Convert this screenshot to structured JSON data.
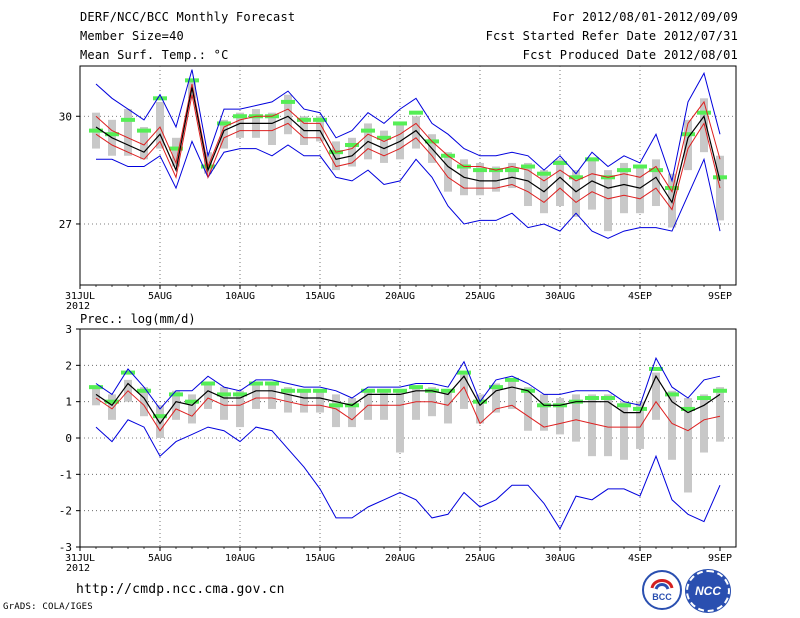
{
  "header": {
    "title": "DERF/NCC/BCC Monthly Forecast",
    "member_size": "Member Size=40",
    "variable": "Mean Surf. Temp.: °C",
    "forecast_period": "For 2012/08/01-2012/09/09",
    "started_refer_date": "Fcst Started Refer Date 2012/07/31",
    "produced_date": "Fcst Produced Date 2012/08/01"
  },
  "footer": {
    "url": "http://cmdp.ncc.cma.gov.cn",
    "credit": "GrADS: COLA/IGES",
    "logo_bcc_text": "BCC",
    "logo_ncc_text": "NCC"
  },
  "colors": {
    "envelope": "#0000dd",
    "mean_line": "#000000",
    "red_line": "#dd2020",
    "box": "#c8c8c8",
    "marker": "#55ee55"
  },
  "chart_data": [
    {
      "id": "temp",
      "type": "line",
      "title": "",
      "ylabel": "Mean Surf. Temp.: °C",
      "ylim": [
        25.3,
        31.4
      ],
      "yticks": [
        27,
        30
      ],
      "xlim": [
        0,
        40
      ],
      "xticks": [
        {
          "x": 0,
          "label": "31JUL",
          "sub": "2012"
        },
        {
          "x": 5,
          "label": "5AUG"
        },
        {
          "x": 10,
          "label": "10AUG"
        },
        {
          "x": 15,
          "label": "15AUG"
        },
        {
          "x": 20,
          "label": "20AUG"
        },
        {
          "x": 25,
          "label": "25AUG"
        },
        {
          "x": 30,
          "label": "30AUG"
        },
        {
          "x": 35,
          "label": "4SEP"
        },
        {
          "x": 40,
          "label": "9SEP"
        }
      ],
      "grid": true,
      "days": [
        1,
        2,
        3,
        4,
        5,
        6,
        7,
        8,
        9,
        10,
        11,
        12,
        13,
        14,
        15,
        16,
        17,
        18,
        19,
        20,
        21,
        22,
        23,
        24,
        25,
        26,
        27,
        28,
        29,
        30,
        31,
        32,
        33,
        34,
        35,
        36,
        37,
        38,
        39,
        40
      ],
      "series": [
        {
          "name": "max",
          "values": [
            30.9,
            30.5,
            30.2,
            29.9,
            30.6,
            29.7,
            31.3,
            28.9,
            30.2,
            30.2,
            30.3,
            30.4,
            30.7,
            30.2,
            30.1,
            29.4,
            29.6,
            30.1,
            29.8,
            30.2,
            30.5,
            29.8,
            29.5,
            29.1,
            28.9,
            28.9,
            29.0,
            28.9,
            28.5,
            28.9,
            28.4,
            29.0,
            28.6,
            28.9,
            28.7,
            29.5,
            28.2,
            30.4,
            31.2,
            29.5
          ]
        },
        {
          "name": "upper_red",
          "values": [
            30.0,
            29.6,
            29.4,
            29.2,
            29.7,
            28.7,
            30.9,
            28.6,
            29.7,
            29.9,
            30.0,
            30.0,
            30.2,
            29.8,
            29.8,
            29.0,
            29.1,
            29.5,
            29.3,
            29.5,
            29.8,
            29.3,
            28.9,
            28.6,
            28.6,
            28.5,
            28.6,
            28.5,
            28.2,
            28.5,
            28.2,
            28.4,
            28.3,
            28.4,
            28.3,
            28.6,
            27.9,
            29.8,
            30.4,
            28.8
          ]
        },
        {
          "name": "mean",
          "values": [
            29.7,
            29.4,
            29.2,
            29.0,
            29.5,
            28.5,
            30.8,
            28.5,
            29.6,
            29.8,
            29.8,
            29.8,
            30.0,
            29.6,
            29.6,
            28.8,
            28.9,
            29.3,
            29.1,
            29.3,
            29.6,
            29.1,
            28.6,
            28.3,
            28.2,
            28.2,
            28.3,
            28.2,
            27.9,
            28.3,
            27.9,
            28.2,
            28.0,
            28.1,
            28.0,
            28.3,
            27.6,
            29.4,
            30.0,
            28.2
          ]
        },
        {
          "name": "lower_red",
          "values": [
            29.5,
            29.2,
            29.0,
            28.8,
            29.3,
            28.3,
            30.6,
            28.3,
            29.4,
            29.6,
            29.6,
            29.6,
            29.8,
            29.4,
            29.4,
            28.6,
            28.7,
            29.1,
            28.9,
            29.1,
            29.4,
            28.9,
            28.3,
            28.0,
            28.0,
            28.0,
            28.1,
            27.9,
            27.6,
            28.0,
            27.6,
            27.9,
            27.7,
            27.8,
            27.7,
            28.0,
            27.4,
            29.1,
            29.8,
            28.0
          ]
        },
        {
          "name": "min",
          "values": [
            28.8,
            28.8,
            28.6,
            28.6,
            28.9,
            28.0,
            29.3,
            28.3,
            29.0,
            29.1,
            29.1,
            28.9,
            29.2,
            28.9,
            28.9,
            28.3,
            28.2,
            28.5,
            28.1,
            28.2,
            28.8,
            28.3,
            27.5,
            27.0,
            27.1,
            27.1,
            27.3,
            26.9,
            27.0,
            26.8,
            27.3,
            26.8,
            26.6,
            26.8,
            26.9,
            26.9,
            26.8,
            27.8,
            28.8,
            26.8
          ]
        },
        {
          "name": "marker",
          "values": [
            29.6,
            29.5,
            29.9,
            29.6,
            30.5,
            29.1,
            31.0,
            28.6,
            29.8,
            30.0,
            30.0,
            30.0,
            30.4,
            29.9,
            29.9,
            29.0,
            29.2,
            29.6,
            29.4,
            29.8,
            30.1,
            29.3,
            28.9,
            28.6,
            28.5,
            28.5,
            28.5,
            28.6,
            28.4,
            28.7,
            28.3,
            28.8,
            28.3,
            28.5,
            28.6,
            28.5,
            28.0,
            29.5,
            30.1,
            28.3
          ]
        },
        {
          "name": "box_high",
          "values": [
            30.1,
            29.9,
            30.2,
            29.7,
            30.4,
            29.4,
            31.0,
            29.0,
            29.9,
            30.1,
            30.2,
            30.1,
            30.6,
            30.0,
            30.0,
            29.3,
            29.4,
            29.8,
            29.6,
            29.8,
            30.0,
            29.5,
            29.0,
            28.8,
            28.7,
            28.6,
            28.7,
            28.7,
            28.5,
            28.8,
            28.5,
            28.8,
            28.5,
            28.7,
            28.6,
            28.8,
            28.4,
            29.9,
            30.5,
            28.9
          ]
        },
        {
          "name": "box_low",
          "values": [
            29.1,
            28.9,
            28.9,
            28.8,
            29.1,
            28.6,
            30.5,
            28.4,
            29.1,
            29.4,
            29.4,
            29.2,
            29.5,
            29.2,
            29.3,
            28.5,
            28.6,
            28.8,
            28.7,
            28.8,
            29.1,
            28.7,
            27.9,
            27.8,
            27.8,
            27.9,
            28.0,
            27.5,
            27.3,
            27.5,
            27.2,
            27.4,
            26.8,
            27.3,
            27.3,
            27.5,
            26.9,
            28.5,
            29.0,
            27.1
          ]
        }
      ]
    },
    {
      "id": "prec",
      "type": "line",
      "title": "Prec.: log(mm/d)",
      "ylabel": "Prec.: log(mm/d)",
      "ylim": [
        -3,
        3
      ],
      "yticks": [
        -3,
        -2,
        -1,
        0,
        1,
        2,
        3
      ],
      "xlim": [
        0,
        40
      ],
      "xticks": [
        {
          "x": 0,
          "label": "31JUL",
          "sub": "2012"
        },
        {
          "x": 5,
          "label": "5AUG"
        },
        {
          "x": 10,
          "label": "10AUG"
        },
        {
          "x": 15,
          "label": "15AUG"
        },
        {
          "x": 20,
          "label": "20AUG"
        },
        {
          "x": 25,
          "label": "25AUG"
        },
        {
          "x": 30,
          "label": "30AUG"
        },
        {
          "x": 35,
          "label": "4SEP"
        },
        {
          "x": 40,
          "label": "9SEP"
        }
      ],
      "grid": true,
      "days": [
        1,
        2,
        3,
        4,
        5,
        6,
        7,
        8,
        9,
        10,
        11,
        12,
        13,
        14,
        15,
        16,
        17,
        18,
        19,
        20,
        21,
        22,
        23,
        24,
        25,
        26,
        27,
        28,
        29,
        30,
        31,
        32,
        33,
        34,
        35,
        36,
        37,
        38,
        39,
        40
      ],
      "series": [
        {
          "name": "max",
          "values": [
            1.5,
            1.2,
            1.9,
            1.4,
            0.8,
            1.3,
            1.3,
            1.7,
            1.4,
            1.3,
            1.6,
            1.6,
            1.5,
            1.4,
            1.4,
            1.3,
            1.1,
            1.4,
            1.4,
            1.4,
            1.5,
            1.5,
            1.4,
            2.1,
            1.0,
            1.6,
            1.7,
            1.5,
            1.2,
            1.2,
            1.3,
            1.3,
            1.3,
            1.0,
            0.9,
            2.2,
            1.4,
            1.1,
            1.6,
            1.7
          ]
        },
        {
          "name": "mean",
          "values": [
            1.2,
            0.9,
            1.5,
            1.1,
            0.4,
            1.0,
            0.9,
            1.3,
            1.1,
            1.1,
            1.3,
            1.3,
            1.2,
            1.1,
            1.1,
            1.0,
            0.9,
            1.2,
            1.2,
            1.2,
            1.3,
            1.3,
            1.2,
            1.7,
            0.9,
            1.3,
            1.4,
            1.3,
            0.9,
            0.9,
            1.0,
            1.0,
            1.0,
            0.7,
            0.7,
            1.7,
            1.0,
            0.7,
            0.9,
            1.2
          ]
        },
        {
          "name": "red",
          "values": [
            1.1,
            0.8,
            1.3,
            0.9,
            0.2,
            0.8,
            0.6,
            1.1,
            0.9,
            0.9,
            1.1,
            1.1,
            1.0,
            0.9,
            0.9,
            0.8,
            0.5,
            0.9,
            0.9,
            0.9,
            1.0,
            1.0,
            0.9,
            1.4,
            0.4,
            0.8,
            0.9,
            0.6,
            0.3,
            0.4,
            0.5,
            0.4,
            0.3,
            0.3,
            0.3,
            1.0,
            0.4,
            0.2,
            0.5,
            0.6
          ]
        },
        {
          "name": "min",
          "values": [
            0.3,
            -0.1,
            0.5,
            0.3,
            -0.5,
            -0.1,
            0.1,
            0.3,
            0.2,
            -0.1,
            0.3,
            0.2,
            -0.3,
            -0.8,
            -1.4,
            -2.2,
            -2.2,
            -1.9,
            -1.7,
            -1.5,
            -1.7,
            -2.2,
            -2.1,
            -1.5,
            -1.9,
            -1.7,
            -1.3,
            -1.3,
            -1.8,
            -2.5,
            -1.6,
            -1.7,
            -1.4,
            -1.4,
            -1.6,
            -0.5,
            -1.7,
            -2.1,
            -2.3,
            -1.3
          ]
        },
        {
          "name": "marker",
          "values": [
            1.4,
            1.0,
            1.8,
            1.3,
            0.6,
            1.2,
            1.0,
            1.5,
            1.2,
            1.2,
            1.5,
            1.5,
            1.3,
            1.3,
            1.3,
            0.9,
            0.9,
            1.3,
            1.3,
            1.3,
            1.4,
            1.3,
            1.3,
            1.8,
            1.0,
            1.4,
            1.6,
            1.3,
            0.9,
            0.9,
            1.0,
            1.1,
            1.1,
            0.9,
            0.8,
            1.9,
            1.2,
            0.8,
            1.1,
            1.3
          ]
        },
        {
          "name": "box_high",
          "values": [
            1.4,
            1.2,
            1.6,
            1.4,
            0.9,
            1.3,
            1.2,
            1.5,
            1.4,
            1.3,
            1.5,
            1.5,
            1.4,
            1.3,
            1.3,
            1.2,
            1.1,
            1.3,
            1.3,
            1.3,
            1.4,
            1.4,
            1.3,
            1.8,
            1.2,
            1.5,
            1.6,
            1.4,
            1.2,
            1.1,
            1.2,
            1.2,
            1.2,
            1.0,
            1.0,
            1.8,
            1.3,
            1.1,
            1.2,
            1.4
          ]
        },
        {
          "name": "box_low",
          "values": [
            0.9,
            0.5,
            1.0,
            0.6,
            0.0,
            0.5,
            0.4,
            0.8,
            0.5,
            0.3,
            0.8,
            0.8,
            0.7,
            0.7,
            0.7,
            0.3,
            0.3,
            0.5,
            0.5,
            -0.4,
            0.5,
            0.6,
            0.4,
            0.8,
            0.4,
            0.7,
            0.8,
            0.2,
            0.2,
            0.1,
            -0.1,
            -0.5,
            -0.5,
            -0.6,
            -0.3,
            0.5,
            -0.6,
            -1.5,
            -0.4,
            -0.1
          ]
        }
      ]
    }
  ]
}
